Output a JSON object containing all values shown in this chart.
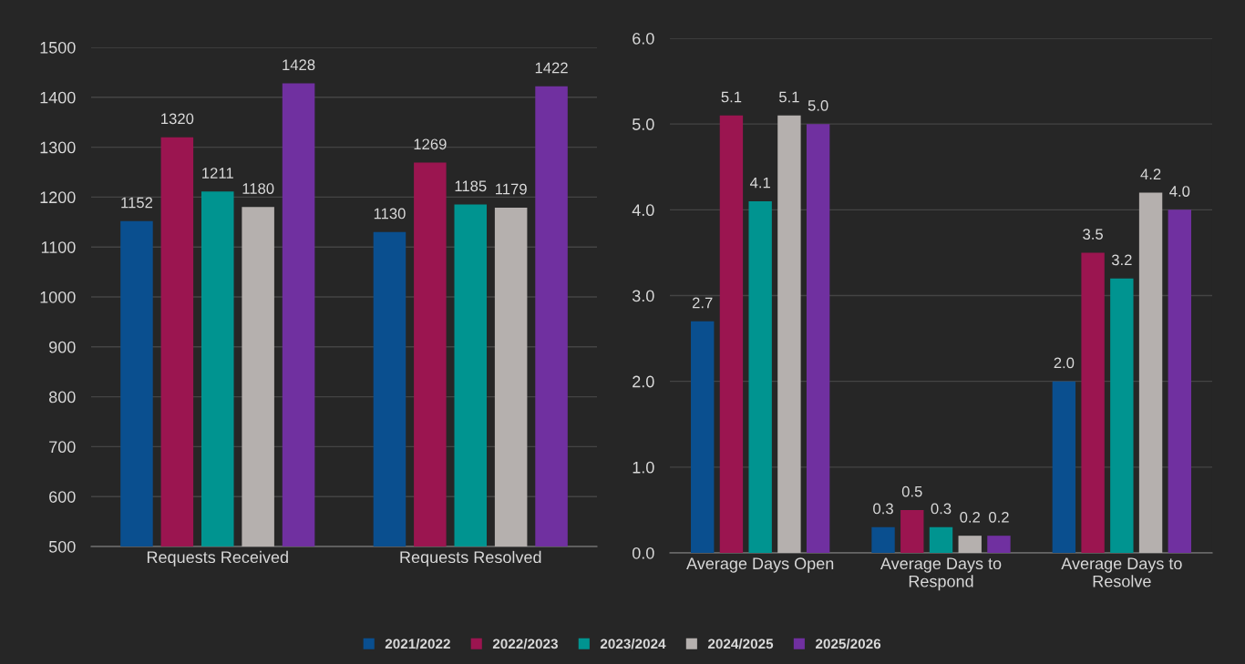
{
  "chart_data": [
    {
      "type": "bar",
      "categories": [
        "Requests Received",
        "Requests Resolved"
      ],
      "series": [
        {
          "name": "2021/2022",
          "color": "#0a4f8f",
          "values": [
            1152,
            1130
          ]
        },
        {
          "name": "2022/2023",
          "color": "#9b1550",
          "values": [
            1320,
            1269
          ]
        },
        {
          "name": "2023/2024",
          "color": "#009490",
          "values": [
            1211,
            1185
          ]
        },
        {
          "name": "2024/2025",
          "color": "#b5b0ae",
          "values": [
            1180,
            1179
          ]
        },
        {
          "name": "2025/2026",
          "color": "#7030a0",
          "values": [
            1428,
            1422
          ]
        }
      ],
      "ylim": [
        500,
        1500
      ],
      "yticks": [
        500,
        600,
        700,
        800,
        900,
        1000,
        1100,
        1200,
        1300,
        1400,
        1500
      ],
      "grid": "y",
      "data_labels": true,
      "legend": "bottom"
    },
    {
      "type": "bar",
      "categories": [
        "Average Days Open",
        "Average Days to Respond",
        "Average Days to Resolve"
      ],
      "series": [
        {
          "name": "2021/2022",
          "color": "#0a4f8f",
          "values": [
            2.7,
            0.3,
            2.0
          ],
          "value_labels": [
            "2.7",
            "0.3",
            "2.0"
          ]
        },
        {
          "name": "2022/2023",
          "color": "#9b1550",
          "values": [
            5.1,
            0.5,
            3.5
          ],
          "value_labels": [
            "5.1",
            "0.5",
            "3.5"
          ]
        },
        {
          "name": "2023/2024",
          "color": "#009490",
          "values": [
            4.1,
            0.3,
            3.2
          ],
          "value_labels": [
            "4.1",
            "0.3",
            "3.2"
          ]
        },
        {
          "name": "2024/2025",
          "color": "#b5b0ae",
          "values": [
            5.1,
            0.2,
            4.2
          ],
          "value_labels": [
            "5.1",
            "0.2",
            "4.2"
          ]
        },
        {
          "name": "2025/2026",
          "color": "#7030a0",
          "values": [
            5.0,
            0.2,
            4.0
          ],
          "value_labels": [
            "5.0",
            "0.2",
            "4.0"
          ]
        }
      ],
      "ylim": [
        0,
        6
      ],
      "yticks": [
        {
          "value": 0,
          "label": "0.0"
        },
        {
          "value": 1,
          "label": "1.0"
        },
        {
          "value": 2,
          "label": "2.0"
        },
        {
          "value": 3,
          "label": "3.0"
        },
        {
          "value": 4,
          "label": "4.0"
        },
        {
          "value": 5,
          "label": "5.0"
        },
        {
          "value": 6,
          "label": "6.0"
        }
      ],
      "grid": "y",
      "legend": "bottom"
    }
  ]
}
